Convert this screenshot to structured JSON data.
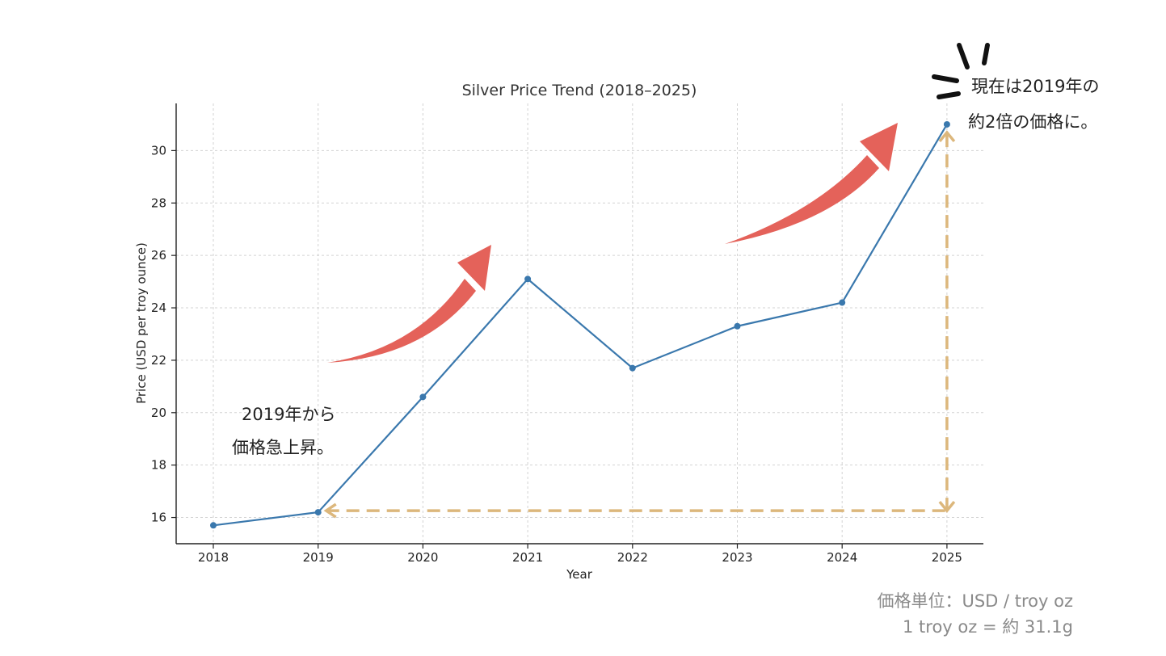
{
  "chart_data": {
    "type": "line",
    "title": "Silver Price Trend (2018–2025)",
    "xlabel": "Year",
    "ylabel": "Price (USD per troy ounce)",
    "x": [
      "2018",
      "2019",
      "2020",
      "2021",
      "2022",
      "2023",
      "2024",
      "2025"
    ],
    "series": [
      {
        "values": [
          15.7,
          16.2,
          20.6,
          25.1,
          21.7,
          23.3,
          24.2,
          31.0
        ],
        "color": "#3a78ad"
      }
    ],
    "y_ticks": [
      "16",
      "18",
      "20",
      "22",
      "24",
      "26",
      "28",
      "30"
    ],
    "ylim": [
      15.0,
      31.8
    ],
    "grid": true,
    "legend": "none"
  },
  "annotations": {
    "left_note": [
      "2019年から",
      "価格急上昇。"
    ],
    "right_note": [
      "現在は2019年の",
      "約2倍の価格に。"
    ],
    "footer": [
      "価格単位：USD / troy oz",
      "1 troy oz = 約 31.1g"
    ],
    "arrow_color": "#e4625a",
    "guide_color": "#dcb77c"
  }
}
